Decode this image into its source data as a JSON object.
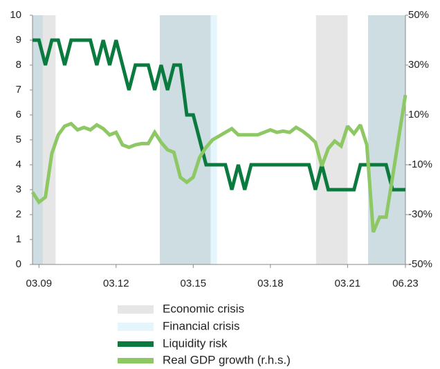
{
  "chart_data": {
    "type": "line",
    "categories": [
      null,
      "03.09",
      null,
      null,
      null,
      null,
      null,
      null,
      null,
      null,
      null,
      null,
      null,
      "03.12",
      null,
      null,
      null,
      null,
      null,
      null,
      null,
      null,
      null,
      null,
      null,
      "03.15",
      null,
      null,
      null,
      null,
      null,
      null,
      null,
      null,
      null,
      null,
      null,
      "03.18",
      null,
      null,
      null,
      null,
      null,
      null,
      null,
      null,
      null,
      null,
      null,
      "03.21",
      null,
      null,
      null,
      null,
      null,
      null,
      null,
      null,
      "06.23"
    ],
    "series": [
      {
        "name": "Liquidity risk",
        "color": "#0b7a3e",
        "axis": "y",
        "values": [
          9,
          9,
          8,
          9,
          9,
          8,
          9,
          9,
          9,
          9,
          8,
          9,
          8,
          9,
          8,
          7,
          8,
          8,
          8,
          7,
          8,
          7,
          8,
          8,
          6,
          6,
          5,
          4,
          4,
          4,
          4,
          3,
          4,
          3,
          4,
          4,
          4,
          4,
          4,
          4,
          4,
          4,
          4,
          4,
          3,
          4,
          3,
          3,
          3,
          3,
          3,
          4,
          4,
          4,
          4,
          4,
          3,
          3,
          3
        ]
      },
      {
        "name": "Real GDP growth (r.h.s.)",
        "color": "#8dc865",
        "axis": "y2",
        "values": [
          -21,
          -25,
          -23,
          -5.5,
          2,
          5.5,
          6.5,
          4,
          5,
          4,
          6,
          4.5,
          2,
          3,
          -2,
          -3,
          -2,
          -1.5,
          -1.5,
          3,
          -1,
          -4,
          -5,
          -15,
          -17,
          -15,
          -7,
          -3,
          0,
          1.5,
          3,
          4.5,
          2,
          2,
          2,
          2,
          3,
          4,
          3,
          3.5,
          3,
          5,
          3.5,
          1.5,
          -1,
          -10.5,
          -3.5,
          -0.5,
          -2.5,
          5.5,
          2.5,
          6,
          -2,
          -37,
          -31,
          -31,
          -15,
          1.5,
          18
        ]
      }
    ],
    "regions": [
      {
        "name": "Economic crisis",
        "color": "#e6e6e6",
        "spans": [
          [
            0,
            3.6
          ],
          [
            19.8,
            27.7
          ],
          [
            44.1,
            49
          ],
          [
            52.2,
            58
          ]
        ]
      },
      {
        "name": "Financial crisis",
        "color": "#e4f5fb",
        "spans": [
          [
            0,
            1.6
          ],
          [
            19.8,
            28.7
          ],
          [
            52.2,
            58
          ]
        ]
      }
    ],
    "ylim": [
      0,
      10
    ],
    "yticks": [
      0,
      1,
      2,
      3,
      4,
      5,
      6,
      7,
      8,
      9,
      10
    ],
    "y2lim": [
      -50,
      50
    ],
    "y2ticks": [
      {
        "value": -50,
        "label": "-50%"
      },
      {
        "value": -30,
        "label": "-30%"
      },
      {
        "value": -10,
        "label": "-10%"
      },
      {
        "value": 10,
        "label": "10%"
      },
      {
        "value": 30,
        "label": "30%"
      },
      {
        "value": 50,
        "label": "50%"
      }
    ]
  }
}
